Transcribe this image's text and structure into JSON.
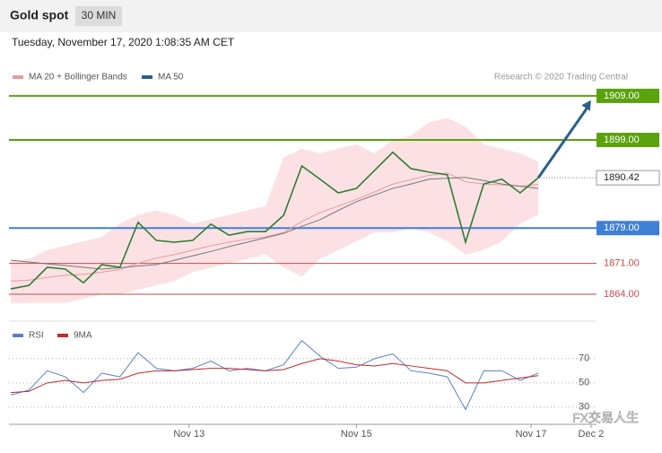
{
  "header": {
    "title": "Gold spot",
    "interval": "30 MIN",
    "timestamp": "Tuesday, November 17, 2020 1:08:35 AM CET"
  },
  "chart_data": {
    "type": "line",
    "credit": "Research © 2020 Trading Central",
    "watermark": "FX交易人生",
    "x": [
      0,
      1,
      2,
      3,
      4,
      5,
      6,
      7,
      8,
      9,
      10,
      11,
      12,
      13,
      14,
      15,
      16,
      17,
      18,
      19,
      20,
      21,
      22,
      23,
      24,
      25,
      26,
      27,
      28,
      29
    ],
    "xlim": [
      -0.1,
      32.2
    ],
    "xticks": [
      {
        "value": 9.8,
        "label": "Nov 13"
      },
      {
        "value": 19,
        "label": "Nov 15"
      },
      {
        "value": 28.6,
        "label": "Nov 17"
      },
      {
        "value": 31.9,
        "label": "Dec 2"
      }
    ],
    "ylim": [
      1858.5,
      1910.4
    ],
    "series": [
      {
        "name": "MA 20 + Bollinger Bands",
        "color": "#e89aa0",
        "band_color": "#fbdadd",
        "values": [
          1867.0,
          1867.2,
          1867.8,
          1868.3,
          1868.5,
          1869.0,
          1869.6,
          1871.0,
          1872.2,
          1873.0,
          1874.0,
          1875.0,
          1875.8,
          1876.5,
          1877.0,
          1878.0,
          1880.5,
          1882.5,
          1884.0,
          1885.5,
          1887.2,
          1889.0,
          1890.0,
          1891.0,
          1891.5,
          1889.5,
          1889.0,
          1888.8,
          1888.5,
          1888.9
        ],
        "upper": [
          1871.5,
          1872,
          1874,
          1875,
          1876,
          1877,
          1880,
          1882,
          1883,
          1882,
          1880,
          1881,
          1882,
          1883,
          1884,
          1895,
          1897,
          1896,
          1897,
          1898,
          1896,
          1899,
          1900,
          1903,
          1904,
          1902,
          1898,
          1897,
          1896,
          1894
        ],
        "lower": [
          1862,
          1862,
          1862,
          1862,
          1863,
          1864,
          1864,
          1865,
          1866,
          1867,
          1869,
          1870,
          1871,
          1872,
          1873,
          1870,
          1868,
          1872,
          1874,
          1876,
          1878,
          1878,
          1879,
          1878,
          1876,
          1873,
          1874,
          1876,
          1880,
          1882
        ]
      },
      {
        "name": "MA 50",
        "color": "#2c5f8a",
        "line_color": "#777777",
        "values": [
          1871.7,
          1871.3,
          1870.9,
          1870.5,
          1870.1,
          1869.7,
          1870.0,
          1870.4,
          1870.7,
          1871.7,
          1872.7,
          1873.7,
          1874.8,
          1875.8,
          1876.8,
          1877.8,
          1879.4,
          1880.9,
          1883.0,
          1885.0,
          1886.5,
          1888.0,
          1889.0,
          1890.1,
          1890.3,
          1890.5,
          1889.8,
          1889.0,
          1888.5,
          1888.0
        ]
      },
      {
        "color": "#2e7d32",
        "values": [
          1865.2,
          1866.0,
          1870.1,
          1869.7,
          1866.6,
          1870.7,
          1870.1,
          1880.3,
          1876.2,
          1875.8,
          1876.2,
          1879.9,
          1877.4,
          1878.2,
          1878.2,
          1881.9,
          1893.1,
          1890.1,
          1887.0,
          1888.0,
          1892.1,
          1896.2,
          1892.5,
          1891.7,
          1891.1,
          1875.8,
          1889.0,
          1890.1,
          1887.0,
          1890.42
        ]
      }
    ],
    "levels": [
      {
        "value": 1909,
        "label": "1909.00",
        "color": "#5aa20e",
        "style": "filled"
      },
      {
        "value": 1899,
        "label": "1899.00",
        "color": "#5aa20e",
        "style": "filled"
      },
      {
        "value": 1879,
        "label": "1879.00",
        "color": "#3f7fd6",
        "style": "filled"
      },
      {
        "value": 1871,
        "label": "1871.00",
        "color": "#c94a4a",
        "style": "text"
      },
      {
        "value": 1864,
        "label": "1864.00",
        "color": "#c94a4a",
        "style": "text"
      }
    ],
    "last": {
      "value": 1890.42,
      "label": "1890.42"
    },
    "forecast": {
      "from": [
        29,
        1890.42
      ],
      "to": [
        31.9,
        1908
      ],
      "color": "#2c5f8a"
    },
    "rsi": {
      "ylim": [
        18,
        81
      ],
      "yticks": [
        70,
        50,
        30
      ],
      "series": [
        {
          "name": "RSI",
          "color": "#5b7fc7",
          "values": [
            40,
            44,
            60,
            55,
            42,
            58,
            55,
            75,
            62,
            60,
            62,
            68,
            60,
            62,
            60,
            65,
            85,
            72,
            62,
            63,
            70,
            74,
            60,
            58,
            55,
            28,
            60,
            60,
            52,
            58
          ]
        },
        {
          "name": "9MA",
          "color": "#c62828",
          "values": [
            42,
            43,
            50,
            52,
            50,
            52,
            53,
            58,
            60,
            60,
            61,
            62,
            62,
            61,
            60,
            61,
            66,
            70,
            68,
            65,
            64,
            66,
            64,
            62,
            60,
            50,
            50,
            52,
            54,
            56
          ]
        }
      ]
    }
  }
}
